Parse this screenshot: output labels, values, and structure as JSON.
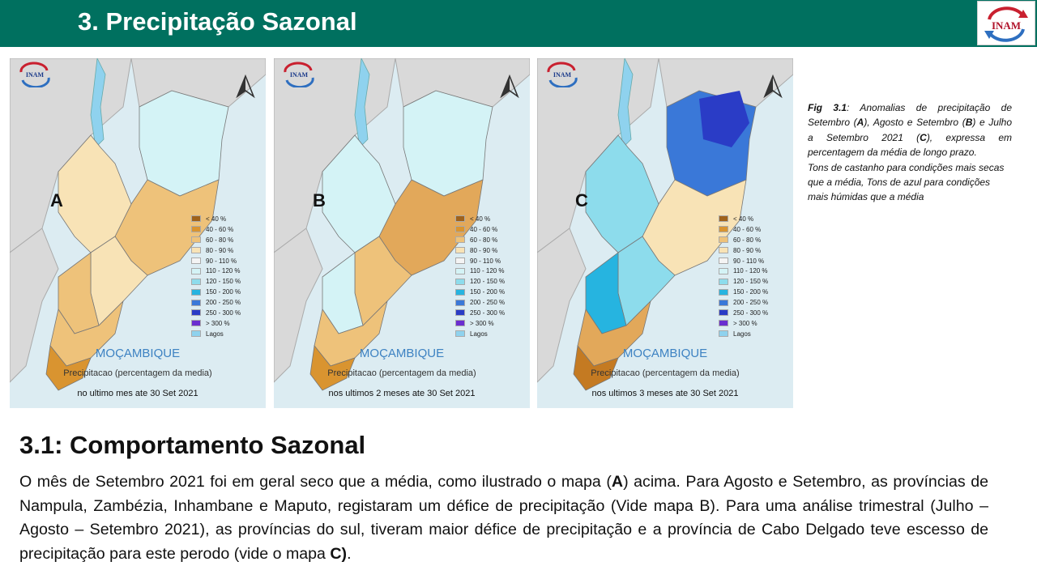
{
  "header": {
    "title": "3. Precipitação Sazonal",
    "logo_text": "INAM",
    "background_color": "#00705f"
  },
  "maps": [
    {
      "letter": "A",
      "logo_text": "INAM",
      "country": "MOÇAMBIQUE",
      "subtitle": "Precipitacao (percentagem da media)",
      "period": "no ultimo mes ate 30 Set 2021"
    },
    {
      "letter": "B",
      "logo_text": "INAM",
      "country": "MOÇAMBIQUE",
      "subtitle": "Precipitacao (percentagem da media)",
      "period": "nos ultimos 2 meses ate 30 Set 2021"
    },
    {
      "letter": "C",
      "logo_text": "INAM",
      "country": "MOÇAMBIQUE",
      "subtitle": "Precipitacao (percentagem da media)",
      "period": "nos ultimos 3 meses ate 30 Set 2021"
    }
  ],
  "legend": [
    {
      "label": "< 40 %",
      "color": "#a0621a"
    },
    {
      "label": "40 - 60 %",
      "color": "#d99430"
    },
    {
      "label": "60 - 80 %",
      "color": "#eec27a"
    },
    {
      "label": "80 - 90 %",
      "color": "#f8e3b6"
    },
    {
      "label": "90 - 110 %",
      "color": "#f4f4f4"
    },
    {
      "label": "110 - 120 %",
      "color": "#d4f3f6"
    },
    {
      "label": "120 - 150 %",
      "color": "#8ddcec"
    },
    {
      "label": "150 - 200 %",
      "color": "#26b4e0"
    },
    {
      "label": "200 - 250 %",
      "color": "#3a78d8"
    },
    {
      "label": "250 - 300 %",
      "color": "#2a3cc6"
    },
    {
      "label": "> 300 %",
      "color": "#6a2ed0"
    },
    {
      "label": "Lagos",
      "color": "#8fd2ee"
    }
  ],
  "caption": {
    "fig_label": "Fig 3.1",
    "part1": ": Anomalias de precipitação de Setembro (",
    "a": "A",
    "part2": "), Agosto e Setembro (",
    "b": "B",
    "part3": ") e Julho a Setembro 2021 (",
    "c": "C",
    "part4": "), expressa em percentagem da média de longo prazo.",
    "line2": "Tons de castanho para condições mais secas que a média, Tons de azul para condições mais húmidas que a média"
  },
  "section": {
    "title": "3.1: Comportamento Sazonal",
    "p1": "O mês de Setembro 2021 foi em geral seco que a média, como ilustrado o mapa (",
    "p1_bold": "A",
    "p2": ") acima. Para Agosto e Setembro, as províncias de Nampula, Zambézia, Inhambane e Maputo, registaram um défice de precipitação (Vide mapa B).     Para uma análise trimestral (Julho – Agosto – Setembro 2021), as províncias do sul, tiveram maior défice de precipitação e a província de Cabo Delgado teve escesso de precipitação para este perodo (vide o mapa ",
    "p2_bold": "C)",
    "p3": "."
  }
}
